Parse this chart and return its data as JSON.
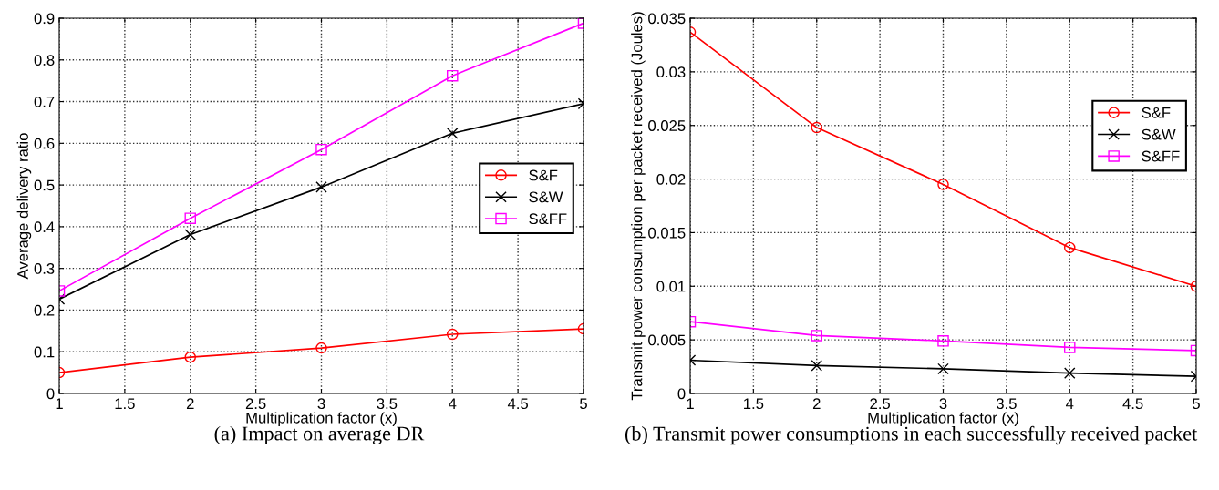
{
  "chart_data": [
    {
      "type": "line",
      "ylabel": "Average delivery ratio",
      "xlabel": "Multiplication factor (x)",
      "annotations": [
        "(a) Impact on average DR"
      ],
      "x": [
        1,
        2,
        3,
        4,
        5
      ],
      "xlim": [
        1,
        5
      ],
      "xticks": [
        1,
        1.5,
        2,
        2.5,
        3,
        3.5,
        4,
        4.5,
        5
      ],
      "ylim": [
        0,
        0.9
      ],
      "yticks": [
        0,
        0.1,
        0.2,
        0.3,
        0.4,
        0.5,
        0.6,
        0.7,
        0.8,
        0.9
      ],
      "grid": true,
      "legend": "right",
      "line_style": "solid",
      "series": [
        {
          "name": "S&F",
          "color": "#ff0000",
          "marker": "circle",
          "values": [
            0.05,
            0.087,
            0.109,
            0.142,
            0.155
          ]
        },
        {
          "name": "S&W",
          "color": "#000000",
          "marker": "cross",
          "values": [
            0.226,
            0.381,
            0.495,
            0.624,
            0.695
          ]
        },
        {
          "name": "S&FF",
          "color": "#ff00ff",
          "marker": "square",
          "values": [
            0.246,
            0.42,
            0.585,
            0.762,
            0.888
          ]
        }
      ]
    },
    {
      "type": "line",
      "ylabel": "Transmit power consumption per packet received (Joules)",
      "xlabel": "Multiplication factor (x)",
      "annotations": [
        "(b) Transmit power consumptions in each successfully received packet"
      ],
      "x": [
        1,
        2,
        3,
        4,
        5
      ],
      "xlim": [
        1,
        5
      ],
      "xticks": [
        1,
        1.5,
        2,
        2.5,
        3,
        3.5,
        4,
        4.5,
        5
      ],
      "ylim": [
        0,
        0.035
      ],
      "yticks": [
        0,
        0.005,
        0.01,
        0.015,
        0.02,
        0.025,
        0.03,
        0.035
      ],
      "grid": true,
      "legend": "top right",
      "line_style": "solid",
      "series": [
        {
          "name": "S&F",
          "color": "#ff0000",
          "marker": "circle",
          "values": [
            0.0337,
            0.0248,
            0.0195,
            0.0136,
            0.01
          ]
        },
        {
          "name": "S&W",
          "color": "#000000",
          "marker": "cross",
          "values": [
            0.0031,
            0.0026,
            0.0023,
            0.0019,
            0.0016
          ]
        },
        {
          "name": "S&FF",
          "color": "#ff00ff",
          "marker": "square",
          "values": [
            0.0067,
            0.0054,
            0.0049,
            0.0043,
            0.004
          ]
        }
      ]
    }
  ]
}
